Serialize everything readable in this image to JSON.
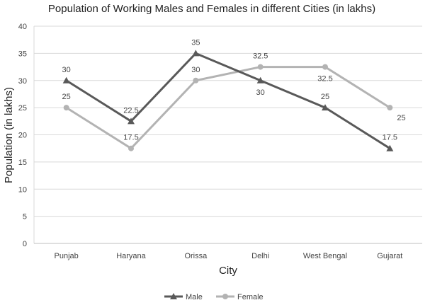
{
  "chart_data": {
    "type": "line",
    "title": "Population of Working Males and Females in different Cities (in lakhs)",
    "xlabel": "City",
    "ylabel": "Population (in lakhs)",
    "categories": [
      "Punjab",
      "Haryana",
      "Orissa",
      "Delhi",
      "West Bengal",
      "Gujarat"
    ],
    "ylim": [
      0,
      40
    ],
    "yticks": [
      0,
      5,
      10,
      15,
      20,
      25,
      30,
      35,
      40
    ],
    "grid": "horizontal",
    "legend_position": "bottom",
    "series": [
      {
        "name": "Male",
        "values": [
          30,
          22.5,
          35,
          30,
          25,
          17.5
        ],
        "color": "#595959",
        "marker": "triangle",
        "labels": [
          "30",
          "22.5",
          "35",
          "30",
          "25",
          "17.5"
        ]
      },
      {
        "name": "Female",
        "values": [
          25,
          17.5,
          30,
          32.5,
          32.5,
          25
        ],
        "color": "#b3b3b3",
        "marker": "circle",
        "labels": [
          "25",
          "17.5",
          "30",
          "32.5",
          "32.5",
          "25"
        ]
      }
    ]
  }
}
